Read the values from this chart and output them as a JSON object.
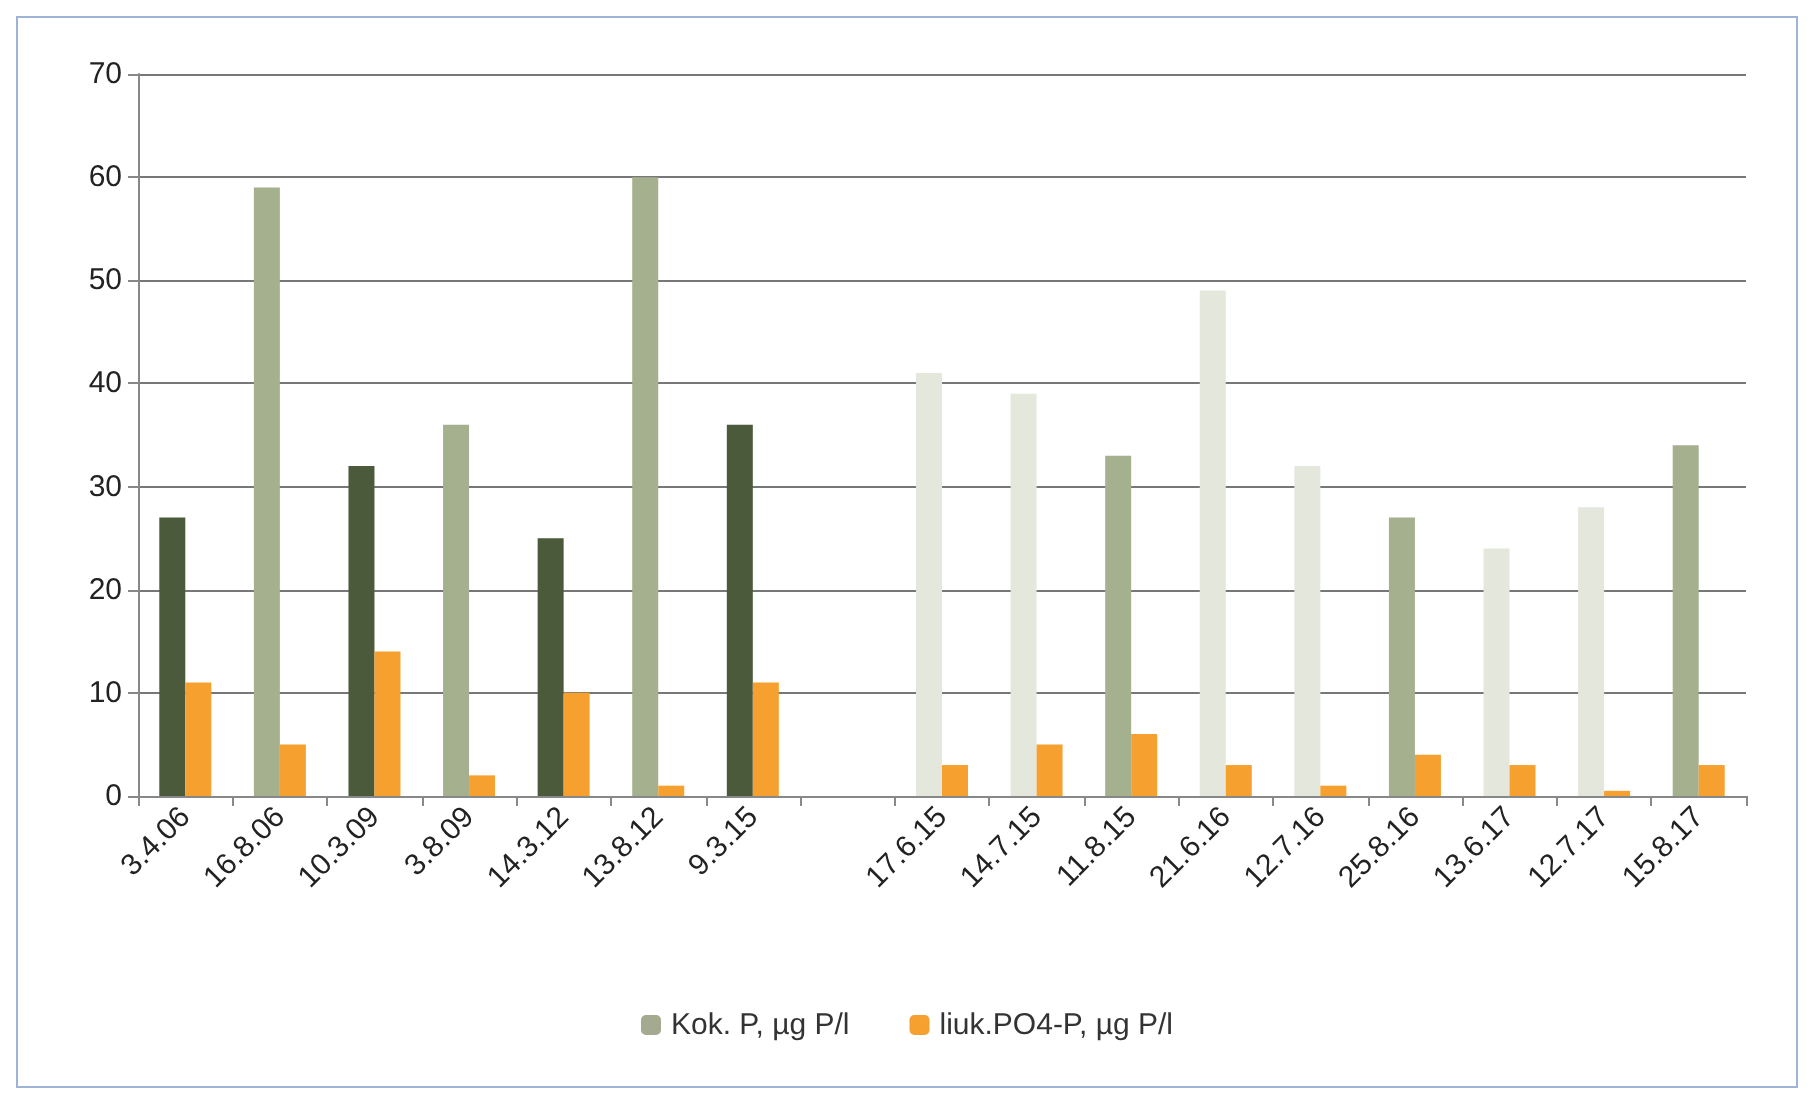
{
  "chart_data": {
    "type": "bar",
    "categories": [
      "3.4.06",
      "16.8.06",
      "10.3.09",
      "3.8.09",
      "14.3.12",
      "13.8.12",
      "9.3.15",
      null,
      "17.6.15",
      "14.7.15",
      "11.8.15",
      "21.6.16",
      "12.7.16",
      "25.8.16",
      "13.6.17",
      "12.7.17",
      "15.8.17"
    ],
    "series": [
      {
        "name": "Kok. P, µg P/l",
        "color": "#a3aa90",
        "colors": [
          "#4b5a3b",
          "#a4b08e",
          "#4b5a3b",
          "#a4b08e",
          "#4b5a3b",
          "#a4b08e",
          "#4b5a3b",
          null,
          "#e4e7dc",
          "#e4e7dc",
          "#a4b08e",
          "#e4e7dc",
          "#e4e7dc",
          "#a4b08e",
          "#e4e7dc",
          "#e4e7dc",
          "#a4b08e"
        ],
        "values": [
          27,
          59,
          32,
          36,
          25,
          60,
          36,
          null,
          41,
          39,
          33,
          49,
          32,
          27,
          24,
          28,
          34
        ]
      },
      {
        "name": "liuk.PO4-P, µg P/l",
        "color": "#f5a02f",
        "values": [
          11,
          5,
          14,
          2,
          10,
          1,
          11,
          null,
          3,
          5,
          6,
          3,
          1,
          4,
          3,
          0.5,
          3
        ]
      }
    ],
    "ylim": [
      0,
      70
    ],
    "yticks": [
      0,
      10,
      20,
      30,
      40,
      50,
      60,
      70
    ],
    "grid": "y",
    "legend": "bottom"
  }
}
